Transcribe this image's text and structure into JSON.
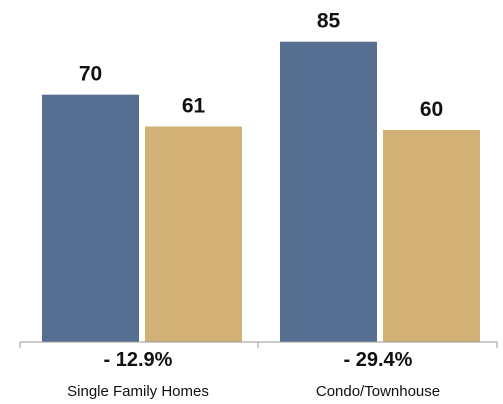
{
  "chart_data": {
    "type": "bar",
    "categories": [
      "Single Family Homes",
      "Condo/Townhouse"
    ],
    "series": [
      {
        "values": [
          70,
          85
        ],
        "color": "#566f91"
      },
      {
        "values": [
          61,
          60
        ],
        "color": "#d1b175"
      }
    ],
    "changes": [
      "- 12.9%",
      "- 29.4%"
    ],
    "ylim": [
      0,
      100
    ],
    "grid": false,
    "title": "",
    "xlabel": "",
    "ylabel": ""
  }
}
